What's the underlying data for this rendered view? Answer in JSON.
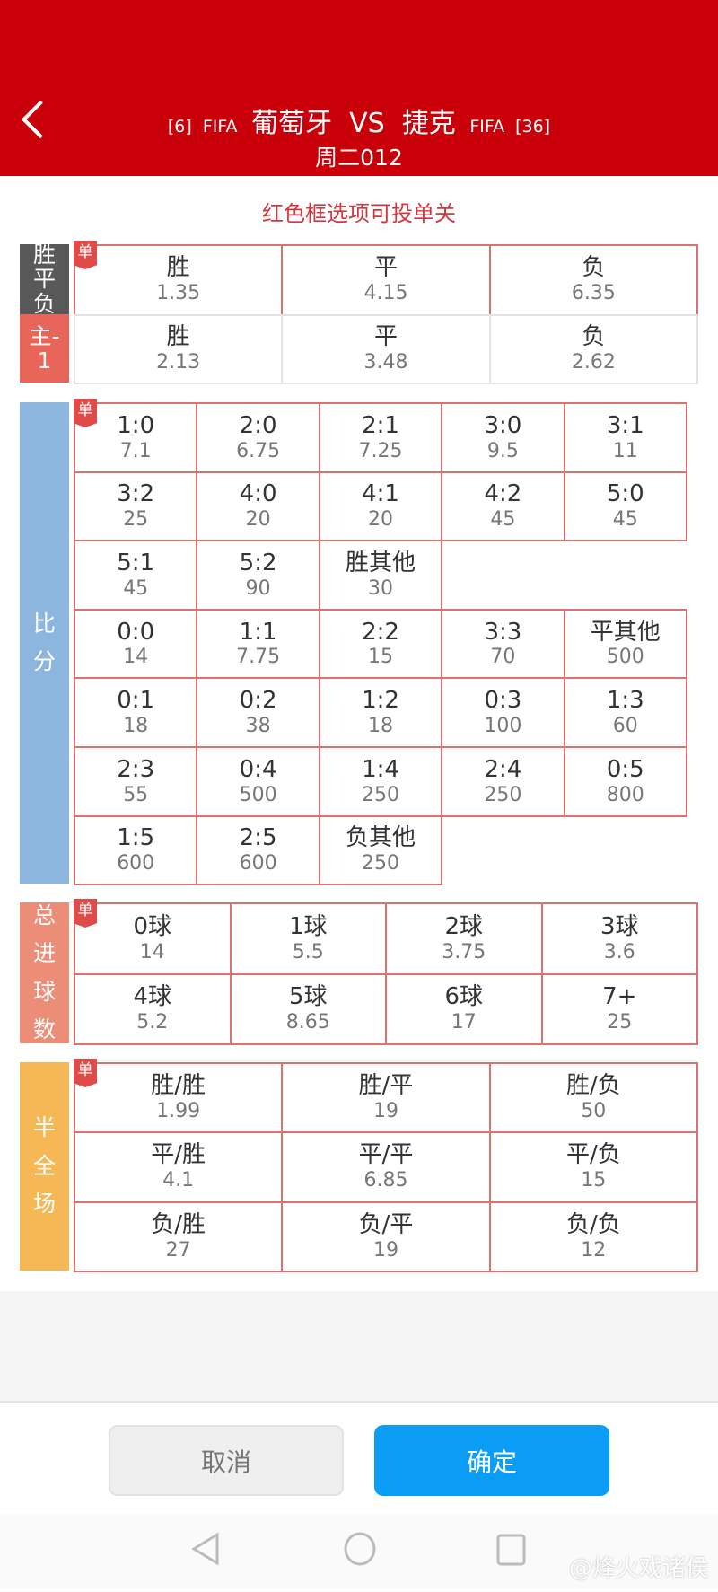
{
  "header": {
    "home_rank": "[6]",
    "home_org": "FIFA",
    "home": "葡萄牙",
    "vs": "VS",
    "away": "捷克",
    "away_org": "FIFA",
    "away_rank": "[36]",
    "match_no": "周二012",
    "bg": "#c90009"
  },
  "note": "红色框选项可投单关",
  "single_badge": "单",
  "sections": [
    {
      "id": "wdl",
      "label": "胜平负",
      "color": "#595959",
      "single": true,
      "red": true,
      "cols": 3,
      "rows": [
        [
          {
            "n": "胜",
            "o": "1.35"
          },
          {
            "n": "平",
            "o": "4.15"
          },
          {
            "n": "负",
            "o": "6.35"
          }
        ]
      ]
    },
    {
      "id": "handicap",
      "label": "主-1",
      "color": "#e8655a",
      "single": false,
      "red": false,
      "cols": 3,
      "rows": [
        [
          {
            "n": "胜",
            "o": "2.13"
          },
          {
            "n": "平",
            "o": "3.48"
          },
          {
            "n": "负",
            "o": "2.62"
          }
        ]
      ]
    },
    {
      "id": "score",
      "label": "比分",
      "color": "#8db6de",
      "single": true,
      "red": true,
      "cols": 5,
      "rows": [
        [
          {
            "n": "1:0",
            "o": "7.1"
          },
          {
            "n": "2:0",
            "o": "6.75"
          },
          {
            "n": "2:1",
            "o": "7.25"
          },
          {
            "n": "3:0",
            "o": "9.5"
          },
          {
            "n": "3:1",
            "o": "11"
          }
        ],
        [
          {
            "n": "3:2",
            "o": "25"
          },
          {
            "n": "4:0",
            "o": "20"
          },
          {
            "n": "4:1",
            "o": "20"
          },
          {
            "n": "4:2",
            "o": "45"
          },
          {
            "n": "5:0",
            "o": "45"
          }
        ],
        [
          {
            "n": "5:1",
            "o": "45"
          },
          {
            "n": "5:2",
            "o": "90"
          },
          {
            "n": "胜其他",
            "o": "30"
          }
        ],
        [
          {
            "n": "0:0",
            "o": "14"
          },
          {
            "n": "1:1",
            "o": "7.75"
          },
          {
            "n": "2:2",
            "o": "15"
          },
          {
            "n": "3:3",
            "o": "70"
          },
          {
            "n": "平其他",
            "o": "500"
          }
        ],
        [
          {
            "n": "0:1",
            "o": "18"
          },
          {
            "n": "0:2",
            "o": "38"
          },
          {
            "n": "1:2",
            "o": "18"
          },
          {
            "n": "0:3",
            "o": "100"
          },
          {
            "n": "1:3",
            "o": "60"
          }
        ],
        [
          {
            "n": "2:3",
            "o": "55"
          },
          {
            "n": "0:4",
            "o": "500"
          },
          {
            "n": "1:4",
            "o": "250"
          },
          {
            "n": "2:4",
            "o": "250"
          },
          {
            "n": "0:5",
            "o": "800"
          }
        ],
        [
          {
            "n": "1:5",
            "o": "600"
          },
          {
            "n": "2:5",
            "o": "600"
          },
          {
            "n": "负其他",
            "o": "250"
          }
        ]
      ]
    },
    {
      "id": "goals",
      "label": "总进球数",
      "color": "#ec8d78",
      "single": true,
      "red": true,
      "cols": 4,
      "rows": [
        [
          {
            "n": "0球",
            "o": "14"
          },
          {
            "n": "1球",
            "o": "5.5"
          },
          {
            "n": "2球",
            "o": "3.75"
          },
          {
            "n": "3球",
            "o": "3.6"
          }
        ],
        [
          {
            "n": "4球",
            "o": "5.2"
          },
          {
            "n": "5球",
            "o": "8.65"
          },
          {
            "n": "6球",
            "o": "17"
          },
          {
            "n": "7+",
            "o": "25"
          }
        ]
      ]
    },
    {
      "id": "htft",
      "label": "半全场",
      "color": "#f6b855",
      "single": true,
      "red": true,
      "cols": 3,
      "rows": [
        [
          {
            "n": "胜/胜",
            "o": "1.99"
          },
          {
            "n": "胜/平",
            "o": "19"
          },
          {
            "n": "胜/负",
            "o": "50"
          }
        ],
        [
          {
            "n": "平/胜",
            "o": "4.1"
          },
          {
            "n": "平/平",
            "o": "6.85"
          },
          {
            "n": "平/负",
            "o": "15"
          }
        ],
        [
          {
            "n": "负/胜",
            "o": "27"
          },
          {
            "n": "负/平",
            "o": "19"
          },
          {
            "n": "负/负",
            "o": "12"
          }
        ]
      ]
    }
  ],
  "buttons": {
    "cancel": "取消",
    "confirm": "确定"
  },
  "watermark": "@烽火戏诸侯"
}
